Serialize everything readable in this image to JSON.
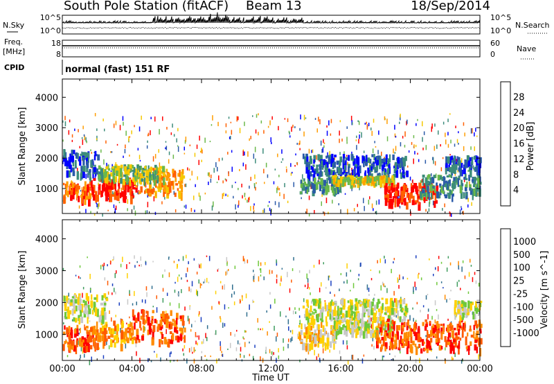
{
  "header": {
    "title": "South Pole Station (fitACF)",
    "beam": "Beam 13",
    "date": "18/Sep/2014"
  },
  "aux_panels": {
    "nsky_label": "N.Sky",
    "nsearch_label": "N.Search",
    "freq_label_1": "Freq.",
    "freq_label_2": "[MHz]",
    "nave_label": "Nave",
    "cpid_label": "CPID",
    "cpid_text": "normal (fast) 151 RF",
    "noise_ticks": [
      "10^5",
      "10^0"
    ],
    "freq_ticks": [
      "18",
      "8"
    ],
    "nave_ticks": [
      "60",
      "0"
    ]
  },
  "chart_data": [
    {
      "type": "heatmap",
      "name": "power",
      "ylabel": "Slant Range [km]",
      "colorbar_label": "Power [dB]",
      "x_ticks": [
        "00:00",
        "04:00",
        "08:00",
        "12:00",
        "16:00",
        "20:00",
        "00:00"
      ],
      "y_ticks": [
        "1000",
        "2000",
        "3000",
        "4000"
      ],
      "y_tick_values": [
        1000,
        2000,
        3000,
        4000
      ],
      "ylim": [
        180,
        4600
      ],
      "xlim_hours": [
        0,
        24
      ],
      "colorbar_ticks": [
        "4",
        "8",
        "12",
        "16",
        "20",
        "24",
        "28"
      ],
      "colors": [
        "#0000ff",
        "#2a5aa8",
        "#3c8c7a",
        "#6ab84a",
        "#f5c800",
        "#ff9c00",
        "#ff6000",
        "#ff0000"
      ],
      "scatter_region_range_km": [
        180,
        3500
      ],
      "echo_bands": [
        {
          "t0": 0.0,
          "t1": 1.6,
          "r0": 700,
          "r1": 1250,
          "level": 6
        },
        {
          "t0": 1.6,
          "t1": 4.2,
          "r0": 750,
          "r1": 1400,
          "level": 7
        },
        {
          "t0": 4.2,
          "t1": 6.9,
          "r0": 850,
          "r1": 1700,
          "level": 5
        },
        {
          "t0": 0.0,
          "t1": 2.0,
          "r0": 1500,
          "r1": 2300,
          "level": 1
        },
        {
          "t0": 2.0,
          "t1": 5.8,
          "r0": 1300,
          "r1": 1800,
          "level": 3
        },
        {
          "t0": 13.8,
          "t1": 19.8,
          "r0": 1450,
          "r1": 2150,
          "level": 1
        },
        {
          "t0": 13.6,
          "t1": 16.0,
          "r0": 900,
          "r1": 1500,
          "level": 2
        },
        {
          "t0": 15.5,
          "t1": 19.0,
          "r0": 1250,
          "r1": 1450,
          "level": 4
        },
        {
          "t0": 18.5,
          "t1": 21.5,
          "r0": 550,
          "r1": 1200,
          "level": 7
        },
        {
          "t0": 20.5,
          "t1": 24.0,
          "r0": 800,
          "r1": 1500,
          "level": 2
        },
        {
          "t0": 22.0,
          "t1": 24.0,
          "r0": 1600,
          "r1": 2100,
          "level": 1
        }
      ]
    },
    {
      "type": "heatmap",
      "name": "velocity",
      "xlabel": "Time UT",
      "ylabel": "Slant Range [km]",
      "colorbar_label": "Velocity [m s^-1]",
      "x_ticks": [
        "00:00",
        "04:00",
        "08:00",
        "12:00",
        "16:00",
        "20:00",
        "00:00"
      ],
      "y_ticks": [
        "1000",
        "2000",
        "3000",
        "4000"
      ],
      "y_tick_values": [
        1000,
        2000,
        3000,
        4000
      ],
      "ylim": [
        180,
        4600
      ],
      "xlim_hours": [
        0,
        24
      ],
      "colorbar_ticks": [
        "1000",
        "500",
        "100",
        "25",
        "-25",
        "-100",
        "-500",
        "-1000"
      ],
      "colors": [
        "#1a3fbf",
        "#2f6e8e",
        "#3f9c5e",
        "#6ec83a",
        "#c8c8c8",
        "#ffd000",
        "#ff8c00",
        "#ff5a00",
        "#ff0000"
      ],
      "scatter_region_range_km": [
        180,
        3500
      ],
      "echo_bands": [
        {
          "t0": 0.0,
          "t1": 1.8,
          "r0": 600,
          "r1": 1300,
          "level": 7
        },
        {
          "t0": 1.8,
          "t1": 4.0,
          "r0": 700,
          "r1": 1500,
          "level": 6
        },
        {
          "t0": 4.0,
          "t1": 7.0,
          "r0": 800,
          "r1": 1800,
          "level": 7
        },
        {
          "t0": 0.0,
          "t1": 2.5,
          "r0": 1500,
          "r1": 2300,
          "level": 4
        },
        {
          "t0": 13.8,
          "t1": 19.8,
          "r0": 1450,
          "r1": 2150,
          "level": 4
        },
        {
          "t0": 13.5,
          "t1": 15.8,
          "r0": 700,
          "r1": 1400,
          "level": 5
        },
        {
          "t0": 15.5,
          "t1": 19.0,
          "r0": 1100,
          "r1": 1450,
          "level": 4
        },
        {
          "t0": 18.0,
          "t1": 24.0,
          "r0": 550,
          "r1": 1500,
          "level": 7
        },
        {
          "t0": 22.5,
          "t1": 24.0,
          "r0": 1600,
          "r1": 2100,
          "level": 4
        }
      ]
    }
  ]
}
